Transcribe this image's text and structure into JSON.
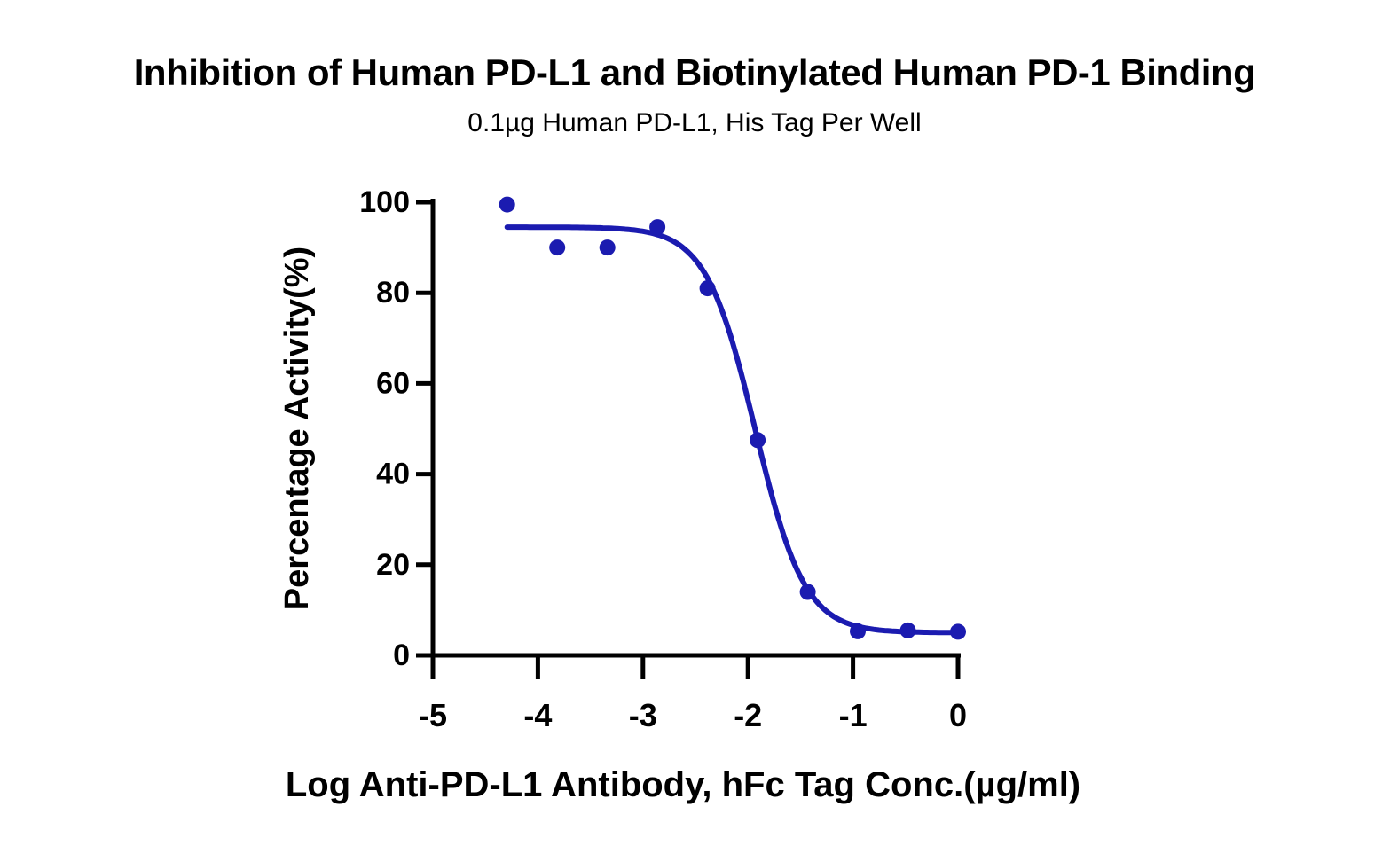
{
  "figure": {
    "title": "Inhibition of Human PD-L1 and Biotinylated Human PD-1 Binding",
    "subtitle": "0.1µg Human PD-L1, His Tag Per Well"
  },
  "colors": {
    "curve": "#1B1BB0",
    "points": "#1B1BB0",
    "axis": "#000000",
    "background": "#FFFFFF",
    "text": "#000000"
  },
  "chart_data": {
    "type": "scatter",
    "title": "Inhibition of Human PD-L1 and Biotinylated Human PD-1 Binding",
    "subtitle": "0.1µg Human PD-L1, His Tag Per Well",
    "xlabel": "Log Anti-PD-L1 Antibody, hFc Tag Conc.(µg/ml)",
    "ylabel": "Percentage Activity(%)",
    "xlim": [
      -5,
      0
    ],
    "ylim": [
      0,
      100
    ],
    "xticks": [
      -5,
      -4,
      -3,
      -2,
      -1,
      0
    ],
    "yticks": [
      0,
      20,
      40,
      60,
      80,
      100
    ],
    "grid": false,
    "legend": "none",
    "series": [
      {
        "name": "Anti-PD-L1 Antibody, hFc Tag",
        "color": "#1B1BB0",
        "marker": "circle",
        "points": [
          {
            "x": -4.293,
            "y": 99.5
          },
          {
            "x": -3.816,
            "y": 90.0
          },
          {
            "x": -3.339,
            "y": 90.0
          },
          {
            "x": -2.862,
            "y": 94.5
          },
          {
            "x": -2.385,
            "y": 81.0
          },
          {
            "x": -1.908,
            "y": 47.5
          },
          {
            "x": -1.431,
            "y": 14.0
          },
          {
            "x": -0.954,
            "y": 5.3
          },
          {
            "x": -0.477,
            "y": 5.5
          },
          {
            "x": 0.0,
            "y": 5.2
          }
        ],
        "fit_curve": {
          "model": "4PL-inhibition",
          "top": 94.5,
          "bottom": 5.0,
          "log_ic50": -1.93,
          "hill_slope": 1.85,
          "x_start": -4.293,
          "x_end": 0.0
        }
      }
    ]
  }
}
